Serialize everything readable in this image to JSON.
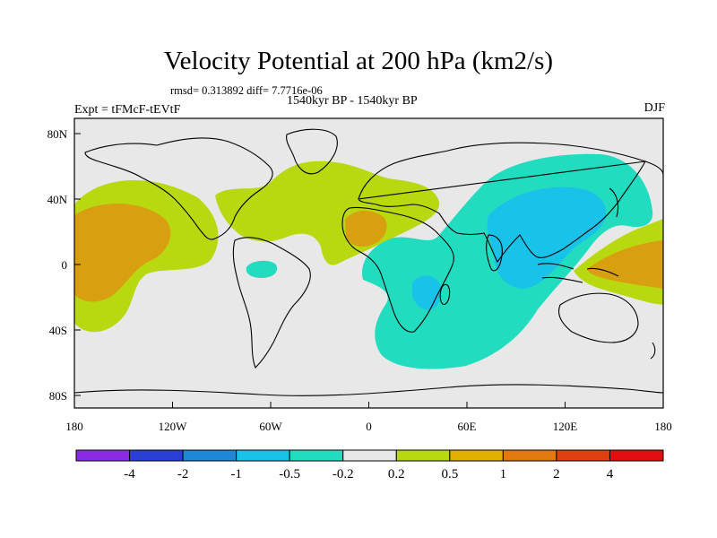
{
  "title": "Velocity Potential at 200 hPa (km2/s)",
  "stats": "rmsd= 0.313892 diff= 7.7716e-06",
  "period": "1540kyr BP - 1540kyr BP",
  "experiment": "Expt = tFMcF-tEVtF",
  "season": "DJF",
  "x_ticks": [
    "180",
    "120W",
    "60W",
    "0",
    "60E",
    "120E",
    "180"
  ],
  "y_ticks": [
    "80N",
    "40N",
    "0",
    "40S",
    "80S"
  ],
  "colorbar": {
    "labels": [
      "-4",
      "-2",
      "-1",
      "-0.5",
      "-0.2",
      "0.2",
      "0.5",
      "1",
      "2",
      "4"
    ],
    "colors": [
      "#8a2be2",
      "#2b3fd6",
      "#1e88d8",
      "#19c2e8",
      "#22dcc0",
      "#e8e8e8",
      "#b8d810",
      "#e0b000",
      "#e07a10",
      "#e04010",
      "#e01010"
    ]
  },
  "colors": {
    "background": "#e8e8e8",
    "positive_weak": "#b8d810",
    "positive_mid": "#d8a010",
    "negative_weak": "#22dcc0",
    "negative_mid": "#19c2e8"
  }
}
